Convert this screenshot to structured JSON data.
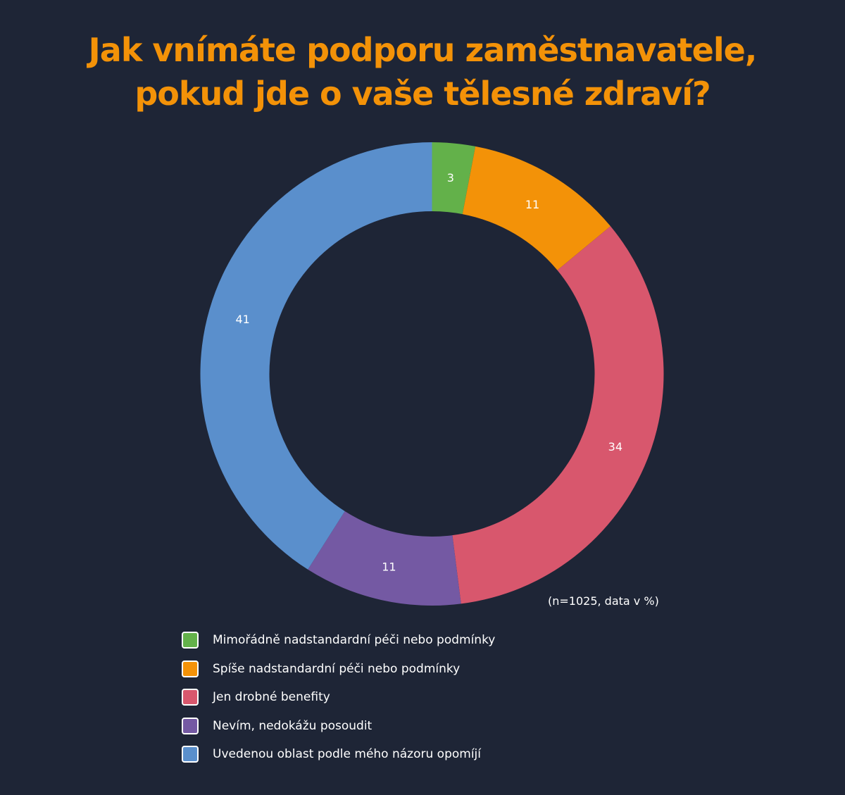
{
  "title": {
    "line1": "Jak vnímáte podporu zaměstnavatele,",
    "line2": "pokud jde o vaše tělesné zdraví?"
  },
  "note": "(n=1025, data v %)",
  "colors": {
    "background": "#1e2536",
    "title": "#f39208",
    "green": "#63b14a",
    "orange": "#f39208",
    "red": "#d8576d",
    "purple": "#7459a3",
    "blue": "#5a8fcc"
  },
  "legend": [
    {
      "label": "Mimořádně nadstandardní péči nebo podmínky",
      "color": "#63b14a"
    },
    {
      "label": "Spíše nadstandardní péči nebo podmínky",
      "color": "#f39208"
    },
    {
      "label": "Jen drobné benefity",
      "color": "#d8576d"
    },
    {
      "label": "Nevím, nedokážu posoudit",
      "color": "#7459a3"
    },
    {
      "label": "Uvedenou oblast podle mého názoru opomíjí",
      "color": "#5a8fcc"
    }
  ],
  "chart_data": {
    "type": "pie",
    "variant": "donut",
    "title": "Jak vnímáte podporu zaměstnavatele, pokud jde o vaše tělesné zdraví?",
    "categories": [
      "Mimořádně nadstandardní péči nebo podmínky",
      "Spíše nadstandardní péči nebo podmínky",
      "Jen drobné benefity",
      "Nevím, nedokážu posoudit",
      "Uvedenou oblast podle mého názoru opomíjí"
    ],
    "values": [
      3,
      11,
      34,
      11,
      41
    ],
    "labels": [
      "3",
      "11",
      "34",
      "11",
      "41"
    ],
    "colors": [
      "#63b14a",
      "#f39208",
      "#d8576d",
      "#7459a3",
      "#5a8fcc"
    ],
    "unit": "%",
    "annotation": "(n=1025, data v %)",
    "start_angle": "12 o'clock",
    "direction": "clockwise",
    "legend_position": "bottom-left"
  }
}
